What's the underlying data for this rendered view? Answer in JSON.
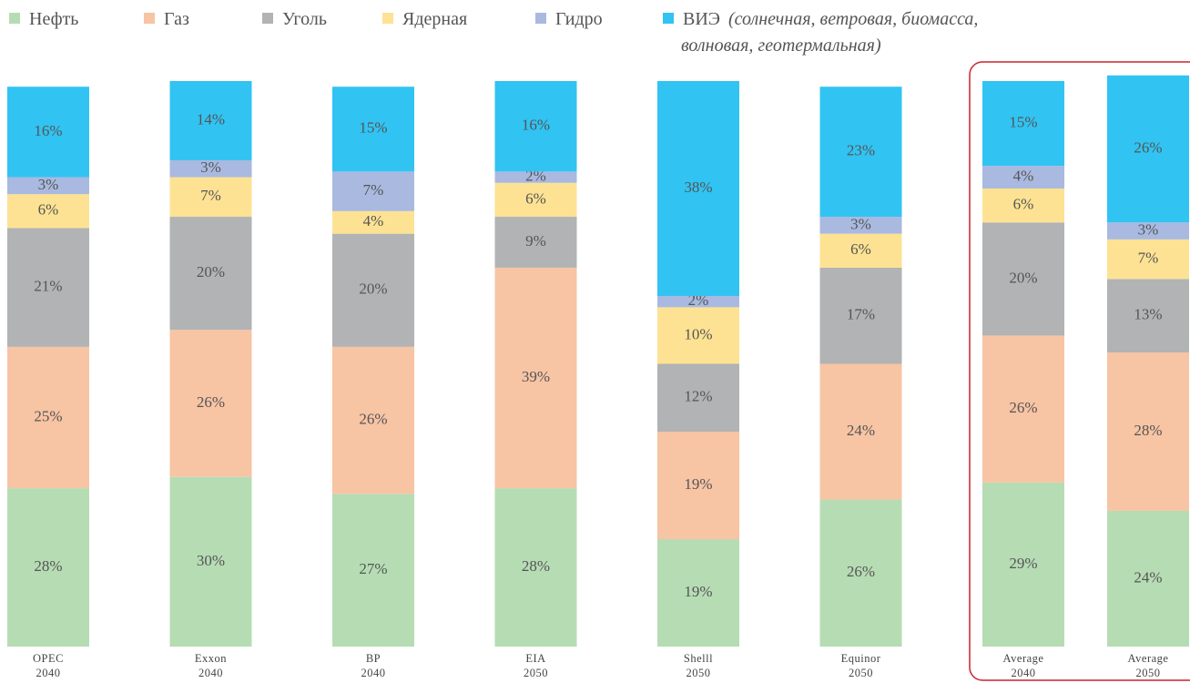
{
  "chart_data": {
    "type": "stacked_bar",
    "categories": [
      [
        "OPEC",
        "2040"
      ],
      [
        "Exxon",
        "2040"
      ],
      [
        "BP",
        "2040"
      ],
      [
        "EIA",
        "2050"
      ],
      [
        "Shelll",
        "2050"
      ],
      [
        "Equinor",
        "2050"
      ],
      [
        "Average",
        "2040"
      ],
      [
        "Average",
        "2050"
      ]
    ],
    "ylim": [
      0,
      100
    ],
    "legend_note": [
      "(солнечная, ветровая, биомасса,",
      "волновая, геотермальная)"
    ],
    "series": [
      {
        "name": "Нефть",
        "color": "#b6dcb4",
        "values": [
          28,
          30,
          27,
          28,
          19,
          26,
          29,
          24
        ],
        "value_labels": [
          "28%",
          "30%",
          "27%",
          "28%",
          "19%",
          "26%",
          "29%",
          "24%"
        ]
      },
      {
        "name": "Газ",
        "color": "#f7c4a4",
        "values": [
          25,
          26,
          26,
          39,
          19,
          24,
          26,
          28
        ],
        "value_labels": [
          "25%",
          "26%",
          "26%",
          "39%",
          "19%",
          "24%",
          "26%",
          "28%"
        ]
      },
      {
        "name": "Уголь",
        "color": "#b1b3b4",
        "values": [
          21,
          20,
          20,
          9,
          12,
          17,
          20,
          13
        ],
        "value_labels": [
          "21%",
          "20%",
          "20%",
          "9%",
          "12%",
          "17%",
          "20%",
          "13%"
        ]
      },
      {
        "name": "Ядерная",
        "color": "#fde293",
        "values": [
          6,
          7,
          4,
          6,
          10,
          6,
          6,
          7
        ],
        "value_labels": [
          "6%",
          "7%",
          "4%",
          "6%",
          "10%",
          "6%",
          "6%",
          "7%"
        ]
      },
      {
        "name": "Гидро",
        "color": "#a9b9e0",
        "values": [
          3,
          3,
          7,
          2,
          2,
          3,
          4,
          3
        ],
        "value_labels": [
          "3%",
          "3%",
          "7%",
          "2%",
          "2%",
          "3%",
          "4%",
          "3%"
        ]
      },
      {
        "name": "ВИЭ",
        "color": "#31c3f2",
        "values": [
          16,
          14,
          15,
          16,
          38,
          23,
          15,
          26
        ],
        "value_labels": [
          "16%",
          "14%",
          "15%",
          "16%",
          "38%",
          "23%",
          "15%",
          "26%"
        ]
      }
    ]
  }
}
